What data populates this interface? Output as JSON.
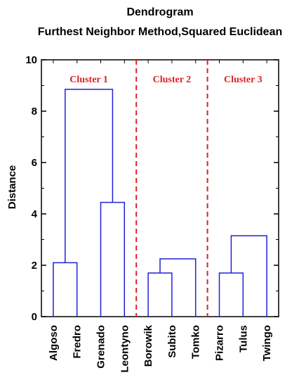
{
  "chart_data": {
    "type": "dendrogram",
    "title": "Dendrogram",
    "subtitle": "Furthest Neighbor Method,Squared Euclidean",
    "ylabel": "Distance",
    "ylim": [
      0,
      10
    ],
    "yticks": [
      0,
      2,
      4,
      6,
      8,
      10
    ],
    "leaves": [
      "Algoso",
      "Fredro",
      "Grenado",
      "Leontyno",
      "Borowik",
      "Subito",
      "Tomko",
      "Pizarro",
      "Tulus",
      "Twingo"
    ],
    "merges": [
      {
        "left": "Algoso",
        "right": "Fredro",
        "height": 2.1
      },
      {
        "left": "Grenado",
        "right": "Leontyno",
        "height": 4.45
      },
      {
        "left": "Algoso+Fredro",
        "right": "Grenado+Leontyno",
        "height": 8.85
      },
      {
        "left": "Borowik",
        "right": "Subito",
        "height": 1.7
      },
      {
        "left": "Borowik+Subito",
        "right": "Tomko",
        "height": 2.25
      },
      {
        "left": "Pizarro",
        "right": "Tulus",
        "height": 1.7
      },
      {
        "left": "Pizarro+Tulus",
        "right": "Twingo",
        "height": 3.15
      }
    ],
    "clusters": [
      {
        "label": "Cluster 1",
        "members": [
          "Algoso",
          "Fredro",
          "Grenado",
          "Leontyno"
        ]
      },
      {
        "label": "Cluster 2",
        "members": [
          "Borowik",
          "Subito",
          "Tomko"
        ]
      },
      {
        "label": "Cluster 3",
        "members": [
          "Pizarro",
          "Tulus",
          "Twingo"
        ]
      }
    ],
    "colors": {
      "branch": "#2020d8",
      "divider": "#e02020",
      "cluster_label": "#e02020",
      "axis": "#000000"
    }
  }
}
